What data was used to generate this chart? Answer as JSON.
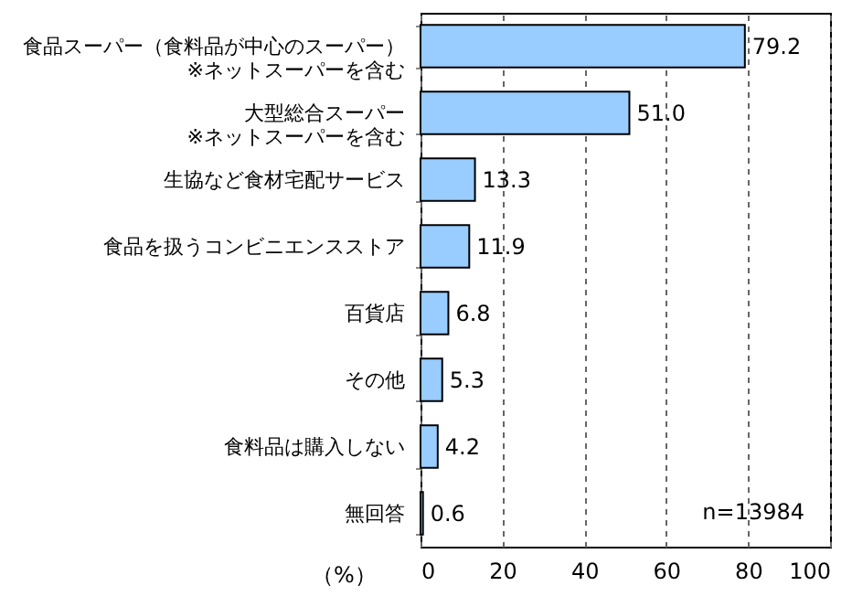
{
  "chart_data": {
    "type": "bar",
    "orientation": "horizontal",
    "categories": [
      "食品スーパー（食料品が中心のスーパー）\n※ネットスーパーを含む",
      "大型総合スーパー\n※ネットスーパーを含む",
      "生協など食材宅配サービス",
      "食品を扱うコンビニエンスストア",
      "百貨店",
      "その他",
      "食料品は購入しない",
      "無回答"
    ],
    "values": [
      79.2,
      51.0,
      13.3,
      11.9,
      6.8,
      5.3,
      4.2,
      0.6
    ],
    "color": "#99ccff",
    "xlim": [
      0,
      100
    ],
    "xticks": [
      0,
      20,
      40,
      60,
      80,
      100
    ],
    "xlabel": "（%）",
    "grid": "x",
    "value_labels": [
      "79.2",
      "51.0",
      "13.3",
      "11.9",
      "6.8",
      "5.3",
      "4.2",
      "0.6"
    ],
    "annotations": [
      "n=13984"
    ]
  }
}
